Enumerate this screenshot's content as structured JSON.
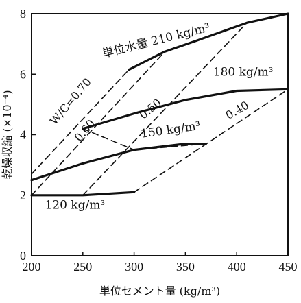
{
  "chart_data": {
    "type": "line",
    "xlabel": "単位セメント量 (kg/m³)",
    "ylabel": "乾燥収縮 (×10⁻⁴)",
    "xlim": [
      200,
      450
    ],
    "ylim": [
      0,
      8
    ],
    "xticks": [
      200,
      250,
      300,
      350,
      400,
      450
    ],
    "yticks": [
      0,
      2,
      4,
      6,
      8
    ],
    "grid": false,
    "series": [
      {
        "name": "単位水量 210 kg/m³",
        "style": "solid",
        "x": [
          295,
          330,
          360,
          410,
          450
        ],
        "y": [
          6.15,
          6.75,
          7.1,
          7.7,
          8.0
        ]
      },
      {
        "name": "180 kg/m³",
        "style": "solid",
        "x": [
          250,
          300,
          350,
          400,
          450
        ],
        "y": [
          4.2,
          4.7,
          5.15,
          5.45,
          5.5
        ]
      },
      {
        "name": "150 kg/m³",
        "style": "solid",
        "x": [
          200,
          250,
          300,
          350,
          370
        ],
        "y": [
          2.5,
          3.05,
          3.5,
          3.7,
          3.7
        ]
      },
      {
        "name": "120 kg/m³",
        "style": "solid",
        "x": [
          200,
          250,
          300
        ],
        "y": [
          2.0,
          2.0,
          2.1
        ]
      },
      {
        "name": "W/C=0.70",
        "style": "dashed",
        "x": [
          200,
          295
        ],
        "y": [
          2.7,
          6.15
        ]
      },
      {
        "name": "0.60",
        "style": "dashed",
        "x": [
          200,
          330
        ],
        "y": [
          2.0,
          6.75
        ]
      },
      {
        "name": "0.50",
        "style": "dashed",
        "x": [
          250,
          410
        ],
        "y": [
          2.0,
          7.7
        ]
      },
      {
        "name": "0.40",
        "style": "dashed",
        "x": [
          300,
          450
        ],
        "y": [
          2.1,
          5.5
        ]
      },
      {
        "name": "",
        "style": "dashed",
        "x": [
          250,
          300,
          370
        ],
        "y": [
          4.2,
          3.5,
          3.7
        ]
      }
    ],
    "annotations": [
      {
        "text": "単位水量 210 kg/m³",
        "x": 270,
        "y": 6.55,
        "rotate": -14
      },
      {
        "text": "180 kg/m³",
        "x": 377,
        "y": 5.95,
        "rotate": 0
      },
      {
        "text": "150 kg/m³",
        "x": 307,
        "y": 3.9,
        "rotate": -8
      },
      {
        "text": "120 kg/m³",
        "x": 213,
        "y": 1.55,
        "rotate": 0
      },
      {
        "text": "W/C=0.70",
        "x": 223,
        "y": 4.3,
        "rotate": -50
      },
      {
        "text": "0.60",
        "x": 247,
        "y": 3.75,
        "rotate": -50
      },
      {
        "text": "0.50",
        "x": 309,
        "y": 4.5,
        "rotate": -40
      },
      {
        "text": "0.40",
        "x": 392,
        "y": 4.5,
        "rotate": -30
      }
    ]
  }
}
